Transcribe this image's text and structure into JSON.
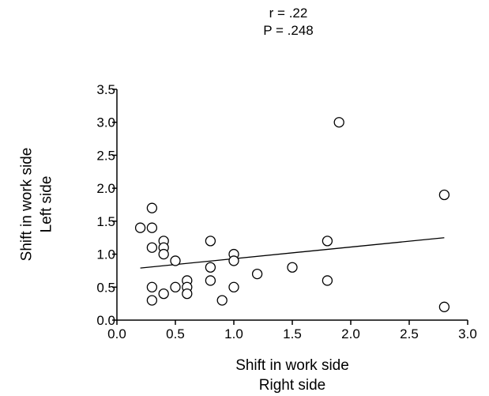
{
  "chart_data": {
    "type": "scatter",
    "annotations": [
      "r = .22",
      "P = .248"
    ],
    "xlabel": [
      "Shift in work side",
      "Right side"
    ],
    "ylabel": [
      "Shift in work side",
      "Left side"
    ],
    "xlim": [
      0.0,
      3.0
    ],
    "ylim": [
      0.0,
      3.5
    ],
    "xticks": [
      "0.0",
      "0.5",
      "1.0",
      "1.5",
      "2.0",
      "2.5",
      "3.0"
    ],
    "yticks": [
      "0.0",
      "0.5",
      "1.0",
      "1.5",
      "2.0",
      "2.5",
      "3.0",
      "3.5"
    ],
    "grid": false,
    "marker": "open-circle",
    "points": [
      {
        "x": 0.2,
        "y": 1.4
      },
      {
        "x": 0.3,
        "y": 1.7
      },
      {
        "x": 0.3,
        "y": 1.4
      },
      {
        "x": 0.3,
        "y": 1.1
      },
      {
        "x": 0.3,
        "y": 0.5
      },
      {
        "x": 0.3,
        "y": 0.3
      },
      {
        "x": 0.4,
        "y": 1.2
      },
      {
        "x": 0.4,
        "y": 1.1
      },
      {
        "x": 0.4,
        "y": 1.0
      },
      {
        "x": 0.4,
        "y": 0.4
      },
      {
        "x": 0.5,
        "y": 0.9
      },
      {
        "x": 0.5,
        "y": 0.5
      },
      {
        "x": 0.6,
        "y": 0.6
      },
      {
        "x": 0.6,
        "y": 0.5
      },
      {
        "x": 0.6,
        "y": 0.4
      },
      {
        "x": 0.8,
        "y": 1.2
      },
      {
        "x": 0.8,
        "y": 0.8
      },
      {
        "x": 0.8,
        "y": 0.6
      },
      {
        "x": 0.9,
        "y": 0.3
      },
      {
        "x": 1.0,
        "y": 1.0
      },
      {
        "x": 1.0,
        "y": 0.9
      },
      {
        "x": 1.0,
        "y": 0.5
      },
      {
        "x": 1.2,
        "y": 0.7
      },
      {
        "x": 1.5,
        "y": 0.8
      },
      {
        "x": 1.8,
        "y": 1.2
      },
      {
        "x": 1.8,
        "y": 0.6
      },
      {
        "x": 1.9,
        "y": 3.0
      },
      {
        "x": 2.8,
        "y": 1.9
      },
      {
        "x": 2.8,
        "y": 0.2
      }
    ],
    "trendline": {
      "x": [
        0.2,
        2.8
      ],
      "y": [
        0.79,
        1.25
      ]
    }
  }
}
